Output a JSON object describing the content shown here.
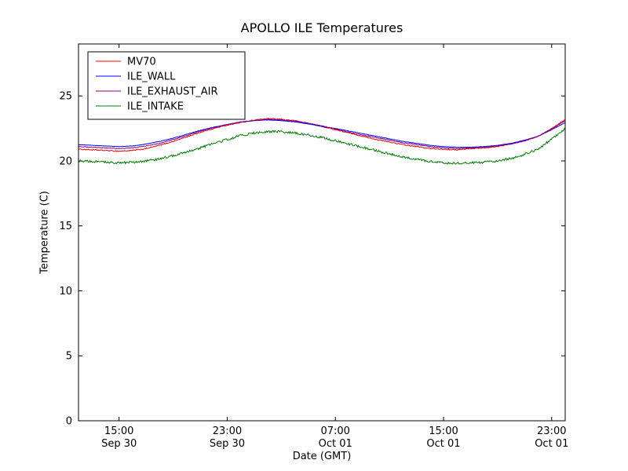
{
  "chart_data": {
    "type": "line",
    "title": "APOLLO ILE Temperatures",
    "xlabel": "Date (GMT)",
    "ylabel": "Temperature (C)",
    "x_unit": "hours since Sep 30 12:00 GMT",
    "xlim": [
      0,
      36
    ],
    "ylim": [
      0,
      29
    ],
    "grid": false,
    "legend_position": "upper left",
    "yticks": [
      0,
      5,
      10,
      15,
      20,
      25
    ],
    "xticks": [
      {
        "t": 3,
        "time": "15:00",
        "date": "Sep 30"
      },
      {
        "t": 11,
        "time": "23:00",
        "date": "Sep 30"
      },
      {
        "t": 19,
        "time": "07:00",
        "date": "Oct 01"
      },
      {
        "t": 27,
        "time": "15:00",
        "date": "Oct 01"
      },
      {
        "t": 35,
        "time": "23:00",
        "date": "Oct 01"
      }
    ],
    "x": [
      0,
      1,
      2,
      3,
      4,
      5,
      6,
      7,
      8,
      9,
      10,
      11,
      12,
      13,
      14,
      15,
      16,
      17,
      18,
      19,
      20,
      21,
      22,
      23,
      24,
      25,
      26,
      27,
      28,
      29,
      30,
      31,
      32,
      33,
      34,
      35,
      36
    ],
    "series": [
      {
        "name": "MV70",
        "color": "#ff0000",
        "noise": 0.035,
        "values": [
          20.9,
          20.85,
          20.8,
          20.75,
          20.8,
          20.95,
          21.2,
          21.5,
          21.85,
          22.2,
          22.5,
          22.75,
          22.95,
          23.15,
          23.25,
          23.2,
          23.1,
          22.9,
          22.65,
          22.4,
          22.15,
          21.9,
          21.65,
          21.45,
          21.25,
          21.1,
          20.95,
          20.9,
          20.85,
          20.95,
          21.0,
          21.1,
          21.3,
          21.55,
          21.9,
          22.5,
          23.2
        ]
      },
      {
        "name": "ILE_WALL",
        "color": "#0000ff",
        "noise": 0.01,
        "values": [
          21.25,
          21.2,
          21.15,
          21.1,
          21.15,
          21.3,
          21.5,
          21.75,
          22.05,
          22.35,
          22.6,
          22.8,
          23.0,
          23.1,
          23.15,
          23.1,
          23.0,
          22.85,
          22.65,
          22.5,
          22.3,
          22.1,
          21.9,
          21.7,
          21.5,
          21.35,
          21.2,
          21.1,
          21.05,
          21.05,
          21.1,
          21.2,
          21.35,
          21.6,
          21.9,
          22.4,
          22.95
        ]
      },
      {
        "name": "ILE_EXHAUST_AIR",
        "color": "#800080",
        "noise": 0.02,
        "values": [
          21.1,
          21.05,
          21.0,
          20.95,
          21.0,
          21.15,
          21.35,
          21.65,
          21.95,
          22.3,
          22.55,
          22.8,
          23.0,
          23.1,
          23.2,
          23.15,
          23.05,
          22.9,
          22.7,
          22.45,
          22.2,
          22.0,
          21.8,
          21.6,
          21.4,
          21.25,
          21.1,
          21.0,
          20.95,
          21.0,
          21.05,
          21.15,
          21.3,
          21.55,
          21.9,
          22.45,
          23.1
        ]
      },
      {
        "name": "ILE_INTAKE",
        "color": "#008000",
        "noise": 0.09,
        "values": [
          20.0,
          19.95,
          19.9,
          19.85,
          19.9,
          20.0,
          20.15,
          20.4,
          20.7,
          21.0,
          21.35,
          21.65,
          21.95,
          22.15,
          22.25,
          22.25,
          22.15,
          22.0,
          21.8,
          21.55,
          21.3,
          21.05,
          20.8,
          20.55,
          20.3,
          20.1,
          19.95,
          19.85,
          19.8,
          19.85,
          19.9,
          20.0,
          20.2,
          20.5,
          20.9,
          21.7,
          22.5
        ]
      }
    ]
  }
}
